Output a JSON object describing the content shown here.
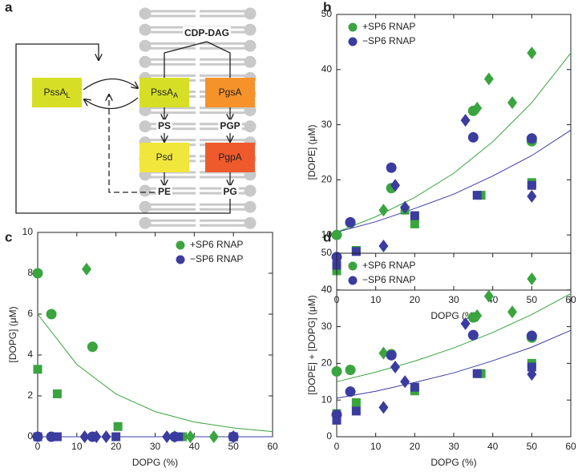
{
  "diagram": {
    "panel_label": "a",
    "nodes": [
      {
        "label": "PssA",
        "subscript": "L",
        "color": "#d6df25"
      },
      {
        "label": "PssA",
        "subscript": "A",
        "color": "#d6df25"
      },
      {
        "label": "PgsA",
        "color": "#f5922a"
      },
      {
        "label": "Psd",
        "color": "#f0e63c"
      },
      {
        "label": "PgpA",
        "color": "#ef5a2c"
      }
    ],
    "metabolites": [
      "CDP-DAG",
      "PS",
      "PGP",
      "PE",
      "PG"
    ]
  },
  "chart_data": [
    {
      "type": "scatter",
      "panel_label": "b",
      "xlabel": "DOPG (%)",
      "ylabel": "[DOPE] (μM)",
      "xlim": [
        0,
        60
      ],
      "ylim": [
        0,
        50
      ],
      "xticks": [
        0,
        10,
        20,
        30,
        40,
        50,
        60
      ],
      "yticks": [
        0,
        10,
        20,
        30,
        40,
        50
      ],
      "legend": "upper left",
      "series": [
        {
          "name": "+SP6 RNAP",
          "color": "#3aa43f",
          "x": [
            0,
            3.5,
            14,
            35,
            50,
            0,
            5,
            17.5,
            20,
            37,
            50,
            12,
            36,
            39,
            45,
            50
          ],
          "values": [
            10,
            12.2,
            18.5,
            32.5,
            27,
            3.5,
            7.2,
            14.5,
            12,
            17.2,
            19.5,
            14.5,
            33,
            38.3,
            34,
            43
          ],
          "markers": [
            "circle",
            "circle",
            "circle",
            "circle",
            "circle",
            "square",
            "square",
            "square",
            "square",
            "square",
            "square",
            "diamond",
            "diamond",
            "diamond",
            "diamond",
            "diamond"
          ]
        },
        {
          "name": "−SP6 RNAP",
          "color": "#3b3ca0",
          "x": [
            0,
            3.5,
            14,
            35,
            50,
            0,
            5,
            20,
            36,
            50,
            12,
            15,
            17.5,
            33,
            50
          ],
          "values": [
            6,
            12.3,
            22.2,
            27.7,
            27.5,
            4.5,
            7,
            13.5,
            17.2,
            19,
            8,
            19,
            15,
            30.8,
            17
          ],
          "markers": [
            "circle",
            "circle",
            "circle",
            "circle",
            "circle",
            "square",
            "square",
            "square",
            "square",
            "square",
            "diamond",
            "diamond",
            "diamond",
            "diamond",
            "diamond"
          ]
        }
      ],
      "fits": [
        {
          "color": "#3aa43f",
          "x": [
            0,
            10,
            20,
            30,
            40,
            50,
            60
          ],
          "values": [
            10.5,
            13.3,
            16.8,
            21.2,
            26.9,
            34,
            43
          ]
        },
        {
          "color": "#3b3ca0",
          "x": [
            0,
            10,
            20,
            30,
            40,
            50,
            60
          ],
          "values": [
            10.5,
            12.4,
            14.8,
            17.4,
            20.7,
            24.4,
            29
          ]
        }
      ]
    },
    {
      "type": "scatter",
      "panel_label": "c",
      "xlabel": "DOPG (%)",
      "ylabel": "[DOPG] (μM)",
      "xlim": [
        0,
        60
      ],
      "ylim": [
        0,
        10
      ],
      "xticks": [
        0,
        10,
        20,
        30,
        40,
        50,
        60
      ],
      "yticks": [
        0,
        2,
        4,
        6,
        8,
        10
      ],
      "legend": "upper right",
      "series": [
        {
          "name": "+SP6 RNAP",
          "color": "#3aa43f",
          "x": [
            0,
            3.5,
            14,
            0,
            5,
            20.5,
            37,
            50,
            12.5,
            35,
            39,
            45,
            50
          ],
          "values": [
            8,
            6,
            4.4,
            3.3,
            2.1,
            0.5,
            0,
            0,
            8.2,
            0,
            0,
            0,
            0
          ],
          "markers": [
            "circle",
            "circle",
            "circle",
            "square",
            "square",
            "square",
            "square",
            "square",
            "diamond",
            "diamond",
            "diamond",
            "diamond",
            "diamond"
          ]
        },
        {
          "name": "−SP6 RNAP",
          "color": "#3b3ca0",
          "x": [
            0,
            3.5,
            14,
            35,
            50,
            0,
            5,
            20,
            36,
            50,
            12,
            15,
            17.5,
            33,
            50
          ],
          "values": [
            0,
            0,
            0,
            0,
            0,
            0,
            0,
            0,
            0,
            0,
            0,
            0,
            0,
            0,
            0
          ],
          "markers": [
            "circle",
            "circle",
            "circle",
            "circle",
            "circle",
            "square",
            "square",
            "square",
            "square",
            "square",
            "diamond",
            "diamond",
            "diamond",
            "diamond",
            "diamond"
          ]
        }
      ],
      "fits": [
        {
          "color": "#3aa43f",
          "x": [
            0,
            10,
            20,
            30,
            40,
            50,
            60
          ],
          "values": [
            6,
            3.54,
            2.09,
            1.23,
            0.72,
            0.43,
            0.25
          ]
        },
        {
          "color": "#3b3ca0",
          "x": [
            0,
            10,
            20,
            30,
            40,
            50,
            60
          ],
          "values": [
            0,
            0,
            0,
            0,
            0,
            0,
            0
          ]
        }
      ]
    },
    {
      "type": "scatter",
      "panel_label": "d",
      "xlabel": "DOPG (%)",
      "ylabel": "[DOPE] + [DOPG] (μM)",
      "xlim": [
        0,
        60
      ],
      "ylim": [
        0,
        50
      ],
      "xticks": [
        0,
        10,
        20,
        30,
        40,
        50,
        60
      ],
      "yticks": [
        0,
        10,
        20,
        30,
        40,
        50
      ],
      "legend": "upper left",
      "series": [
        {
          "name": "+SP6 RNAP",
          "color": "#3aa43f",
          "x": [
            0,
            3.5,
            14,
            35,
            50,
            0,
            5,
            20,
            37,
            50,
            12,
            36,
            39,
            45,
            50
          ],
          "values": [
            17.8,
            18.2,
            22.5,
            32.5,
            27,
            6.3,
            9.3,
            12.5,
            17.2,
            20,
            22.8,
            33,
            38.3,
            34,
            43
          ],
          "markers": [
            "circle",
            "circle",
            "circle",
            "circle",
            "circle",
            "square",
            "square",
            "square",
            "square",
            "square",
            "diamond",
            "diamond",
            "diamond",
            "diamond",
            "diamond"
          ]
        },
        {
          "name": "−SP6 RNAP",
          "color": "#3b3ca0",
          "x": [
            0,
            3.5,
            14,
            35,
            50,
            0,
            5,
            20,
            36,
            50,
            12,
            15,
            17.5,
            33,
            50
          ],
          "values": [
            6,
            12.3,
            22.2,
            27.7,
            27.5,
            4.5,
            7,
            13.5,
            17.2,
            19,
            8,
            19,
            15,
            30.8,
            17
          ],
          "markers": [
            "circle",
            "circle",
            "circle",
            "circle",
            "circle",
            "square",
            "square",
            "square",
            "square",
            "square",
            "diamond",
            "diamond",
            "diamond",
            "diamond",
            "diamond"
          ]
        }
      ],
      "fits": [
        {
          "color": "#3aa43f",
          "x": [
            0,
            10,
            20,
            30,
            40,
            50,
            60
          ],
          "values": [
            15,
            17.6,
            20.6,
            24.2,
            28.4,
            33.3,
            39
          ]
        },
        {
          "color": "#3b3ca0",
          "x": [
            0,
            10,
            20,
            30,
            40,
            50,
            60
          ],
          "values": [
            10.5,
            12.4,
            14.8,
            17.4,
            20.7,
            24.4,
            29
          ]
        }
      ]
    }
  ]
}
